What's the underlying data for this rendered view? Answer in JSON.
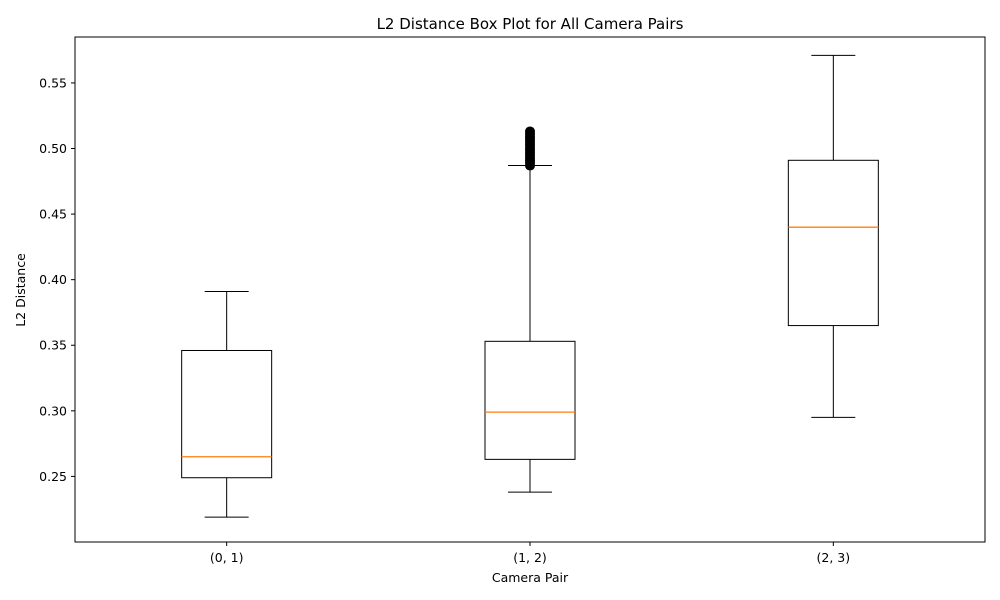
{
  "chart_data": {
    "type": "box",
    "title": "L2 Distance Box Plot for All Camera Pairs",
    "xlabel": "Camera Pair",
    "ylabel": "L2 Distance",
    "ylim": [
      0.2,
      0.585
    ],
    "yticks": [
      0.25,
      0.3,
      0.35,
      0.4,
      0.45,
      0.5,
      0.55
    ],
    "grid": false,
    "categories": [
      "(0, 1)",
      "(1, 2)",
      "(2, 3)"
    ],
    "boxes": [
      {
        "category": "(0, 1)",
        "whisker_low": 0.219,
        "q1": 0.249,
        "median": 0.265,
        "q3": 0.346,
        "whisker_high": 0.391,
        "outliers": []
      },
      {
        "category": "(1, 2)",
        "whisker_low": 0.238,
        "q1": 0.263,
        "median": 0.299,
        "q3": 0.353,
        "whisker_high": 0.487,
        "outliers": [
          0.487,
          0.489,
          0.491,
          0.493,
          0.495,
          0.497,
          0.499,
          0.501,
          0.503,
          0.505,
          0.507,
          0.509,
          0.511,
          0.513
        ]
      },
      {
        "category": "(2, 3)",
        "whisker_low": 0.295,
        "q1": 0.365,
        "median": 0.44,
        "q3": 0.491,
        "whisker_high": 0.571,
        "outliers": []
      }
    ],
    "colors": {
      "box": "#000000",
      "median": "#ff7f0e",
      "outlier": "#000000"
    }
  }
}
